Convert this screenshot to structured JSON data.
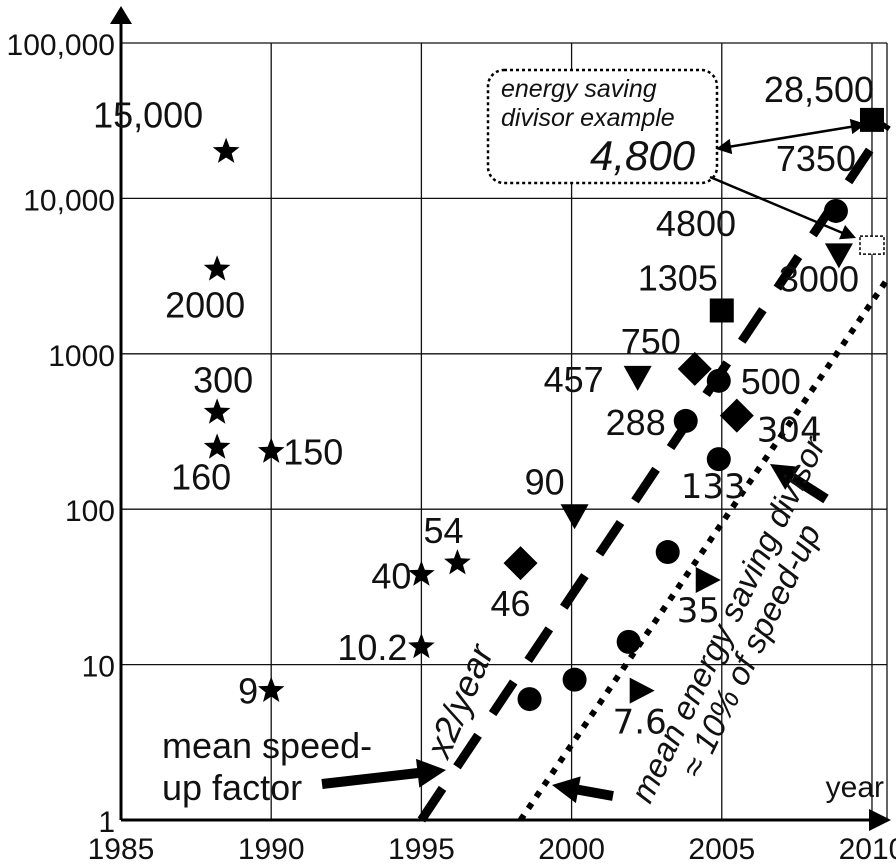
{
  "chart_data": {
    "type": "scatter",
    "x_axis": {
      "label": "year",
      "ticks": [
        "1985",
        "1990",
        "1995",
        "2000",
        "2005",
        "2010"
      ],
      "range": [
        1985,
        2010.5
      ]
    },
    "y_axis": {
      "scale": "log",
      "ticks": [
        "1",
        "10",
        "100",
        "1000",
        "10,000",
        "100,000"
      ],
      "range": [
        1,
        100000
      ]
    },
    "grid": true,
    "points": [
      {
        "x": 1988.5,
        "y": 20000,
        "marker": "star",
        "label": "15,000"
      },
      {
        "x": 1988.2,
        "y": 3500,
        "marker": "star",
        "label": "2000"
      },
      {
        "x": 1988.2,
        "y": 420,
        "marker": "star",
        "label": "300"
      },
      {
        "x": 1988.2,
        "y": 250,
        "marker": "star",
        "label": "160"
      },
      {
        "x": 1990.0,
        "y": 235,
        "marker": "star",
        "label": "150"
      },
      {
        "x": 1995.0,
        "y": 38,
        "marker": "star",
        "label": "40"
      },
      {
        "x": 1996.2,
        "y": 45,
        "marker": "star",
        "label": "54"
      },
      {
        "x": 1995.0,
        "y": 13,
        "marker": "star",
        "label": "10.2"
      },
      {
        "x": 1990.0,
        "y": 6.8,
        "marker": "star",
        "label": "9"
      },
      {
        "x": 1998.3,
        "y": 45,
        "marker": "diamond",
        "label": "46"
      },
      {
        "x": 2004.1,
        "y": 800,
        "marker": "diamond",
        "label": "750"
      },
      {
        "x": 2005.5,
        "y": 400,
        "marker": "diamond",
        "label": "304"
      },
      {
        "x": 1998.6,
        "y": 6,
        "marker": "circle",
        "label": ""
      },
      {
        "x": 2000.1,
        "y": 8,
        "marker": "circle",
        "label": ""
      },
      {
        "x": 2001.9,
        "y": 14,
        "marker": "circle",
        "label": ""
      },
      {
        "x": 2003.2,
        "y": 53,
        "marker": "circle",
        "label": ""
      },
      {
        "x": 2003.8,
        "y": 370,
        "marker": "circle",
        "label": "288"
      },
      {
        "x": 2004.9,
        "y": 670,
        "marker": "circle",
        "label": "500"
      },
      {
        "x": 2004.9,
        "y": 210,
        "marker": "circle",
        "label": "133"
      },
      {
        "x": 2008.8,
        "y": 8300,
        "marker": "circle",
        "label": "7350"
      },
      {
        "x": 2002.2,
        "y": 700,
        "marker": "triangle-down",
        "label": "457"
      },
      {
        "x": 2000.1,
        "y": 90,
        "marker": "triangle-down",
        "label": "90"
      },
      {
        "x": 2008.9,
        "y": 4300,
        "marker": "triangle-down",
        "label": "3000"
      },
      {
        "x": 2002.3,
        "y": 6.8,
        "marker": "triangle-right",
        "label": "7.6"
      },
      {
        "x": 2004.5,
        "y": 35,
        "marker": "triangle-right",
        "label": "35"
      },
      {
        "x": 2005.0,
        "y": 1900,
        "marker": "square",
        "label": "1305"
      },
      {
        "x": 2010.0,
        "y": 32000,
        "marker": "square",
        "label": "28,500"
      },
      {
        "x": 2010.0,
        "y": 5000,
        "marker": "square-dashed",
        "label": "4800"
      }
    ],
    "trend_lines": [
      {
        "style": "dashed",
        "from": [
          1995.0,
          1
        ],
        "to": [
          2010.5,
          30000
        ],
        "label": "x2/year"
      },
      {
        "style": "dotted",
        "from": [
          1998.3,
          1
        ],
        "to": [
          2010.5,
          3000
        ],
        "label": "mean energy saving divisor ≈ 10% of speed-up"
      }
    ],
    "annotations": {
      "speedup_label": [
        "mean speed-",
        "up factor"
      ],
      "box_lines": [
        "energy saving",
        "divisor example"
      ],
      "box_value": "4,800",
      "x2_label": "x2/year",
      "energy_lines": [
        "mean energy saving divisor",
        "≈ 10% of speed-up"
      ]
    }
  }
}
